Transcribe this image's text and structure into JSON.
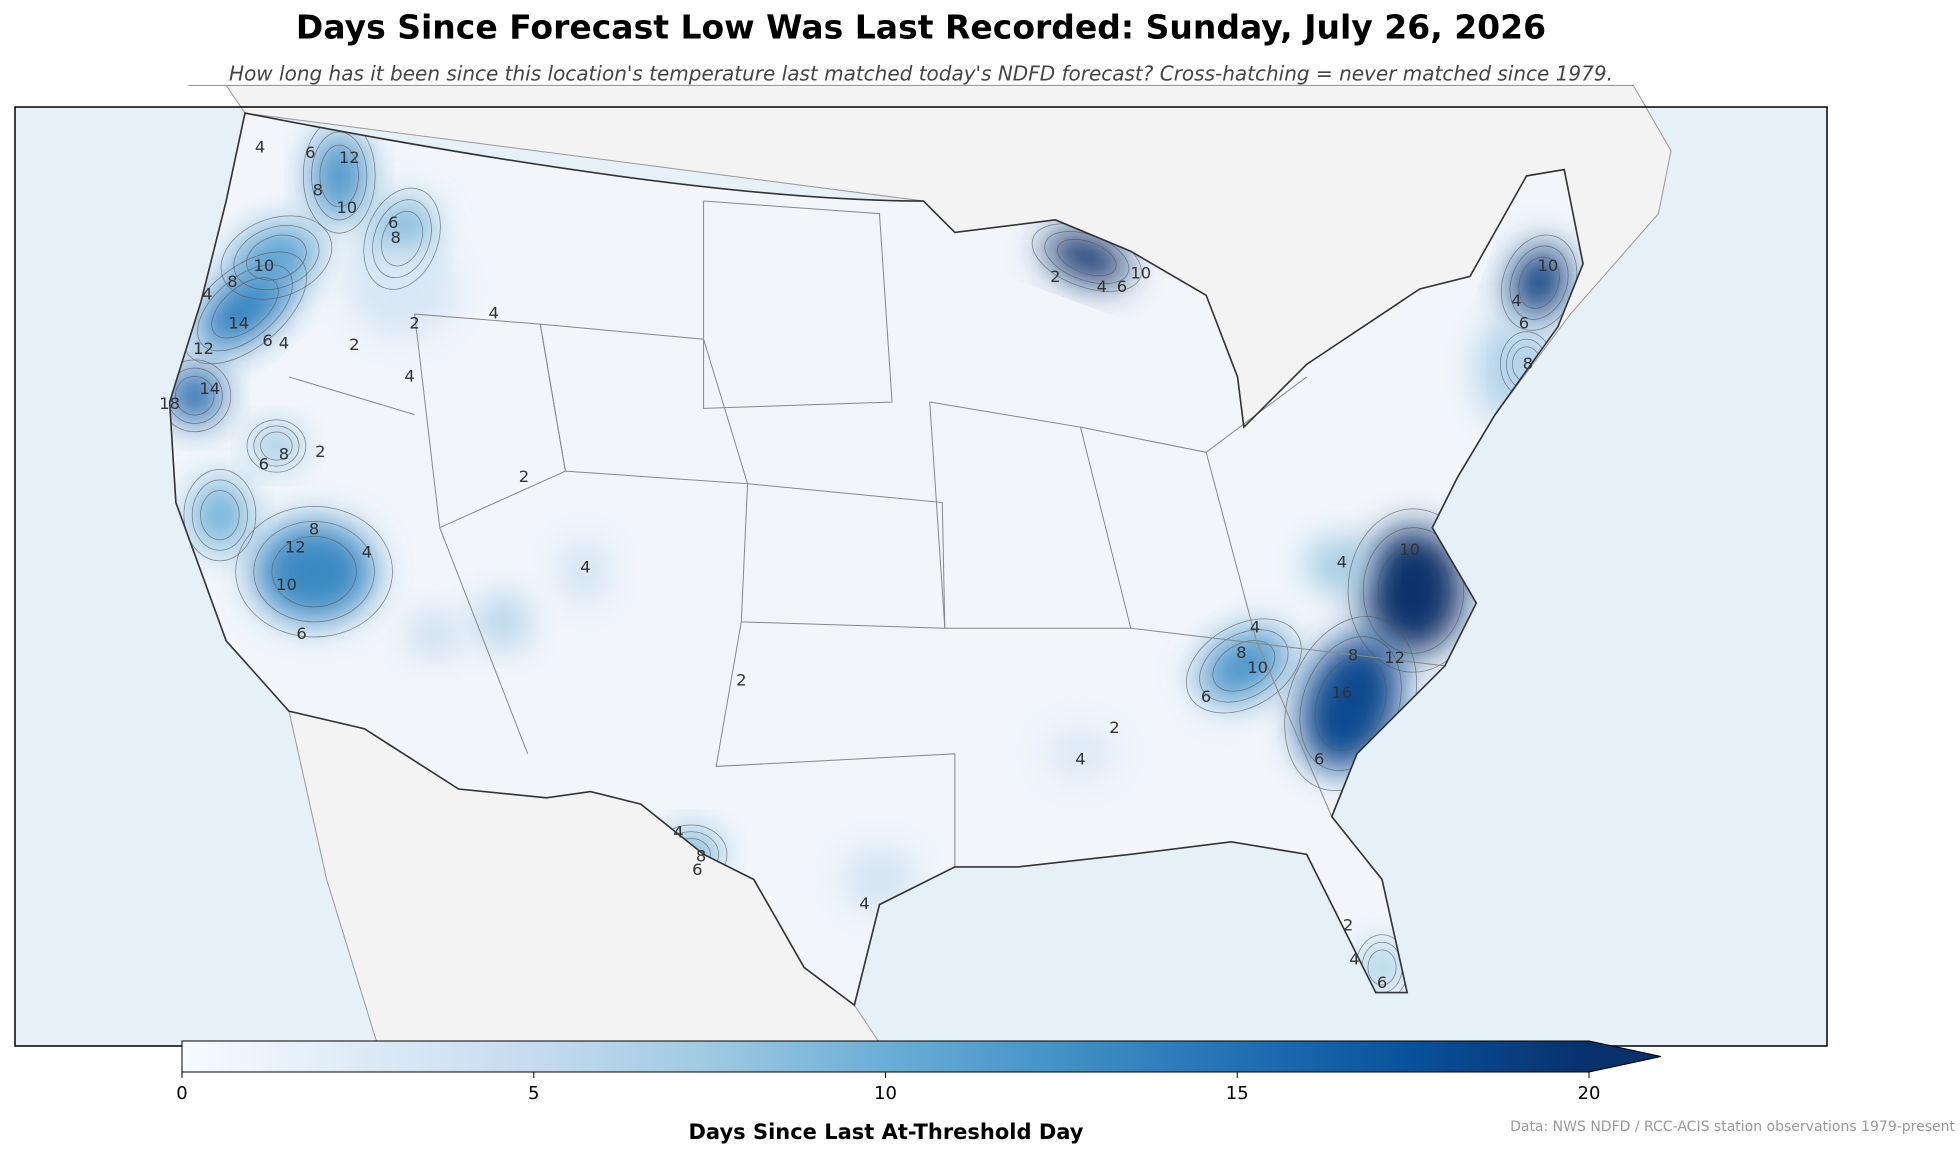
{
  "chart_data": {
    "type": "contour-map",
    "title": "Days Since Forecast Low Was Last Recorded: Sunday, July 26, 2026",
    "subtitle": "How long has it been since this location's temperature last matched today's NDFD forecast? Cross-hatching = never matched since 1979.",
    "contour_labels": [
      4,
      6,
      12,
      8,
      10,
      6,
      8,
      10,
      8,
      4,
      14,
      12,
      14,
      18,
      6,
      4,
      2,
      2,
      4,
      4,
      8,
      2,
      6,
      12,
      8,
      10,
      6,
      4,
      4,
      2,
      2,
      4,
      8,
      6,
      4,
      4,
      2,
      10,
      4,
      12,
      16,
      10,
      8,
      4,
      6,
      6,
      6,
      4,
      2,
      4,
      6,
      8,
      10,
      6,
      4,
      10,
      2,
      8
    ],
    "colorbar": {
      "label": "Days Since Last At-Threshold Day",
      "lim": [
        0,
        20
      ],
      "ticks": [
        0,
        5,
        10,
        15,
        20
      ],
      "extend": "max",
      "colors": [
        "#f7fbff",
        "#deebf7",
        "#c6dbef",
        "#9ecae1",
        "#6baed6",
        "#4292c6",
        "#2171b5",
        "#08519c",
        "#08306b"
      ]
    },
    "source": "Data: NWS NDFD / RCC-ACIS station observations 1979-present"
  }
}
